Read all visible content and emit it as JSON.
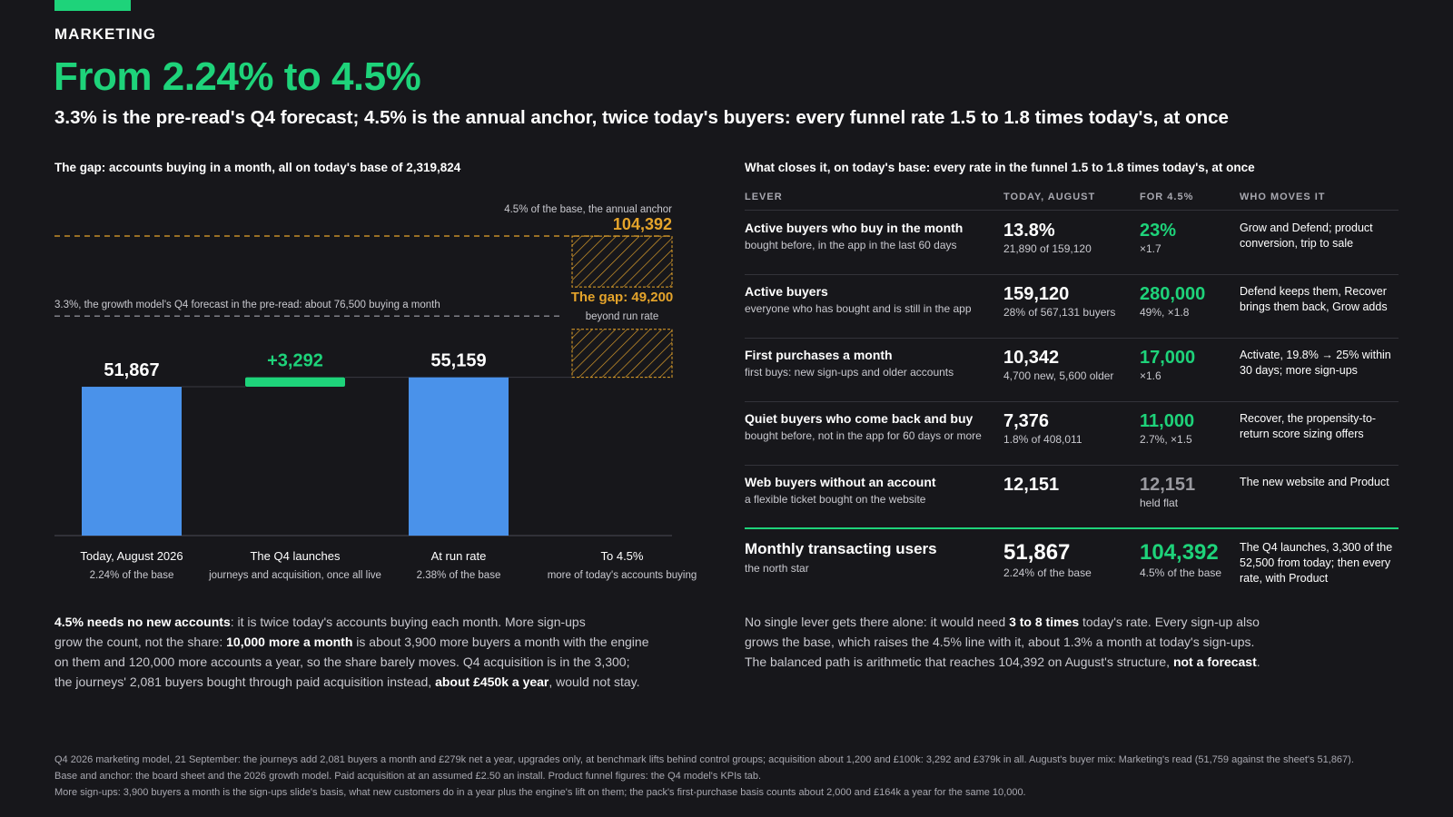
{
  "header": {
    "eyebrow": "MARKETING",
    "headline": "From 2.24% to 4.5%",
    "subhead": "3.3% is the pre-read's Q4 forecast; 4.5% is the annual anchor, twice today's buyers: every funnel rate 1.5 to 1.8 times today's, at once"
  },
  "colors": {
    "accent": "#1ed37a",
    "bar": "#4a92ea",
    "gap": "#e5a42b",
    "muted": "#a8a8b0"
  },
  "left_panel": {
    "title": "The gap: accounts buying in a month, all on today's base of 2,319,824"
  },
  "chart_data": {
    "type": "bar",
    "title": "The gap: accounts buying in a month, all on today's base of 2,319,824",
    "categories": [
      "Today, August 2026",
      "The Q4 launches",
      "At run rate",
      "To 4.5%"
    ],
    "category_sublabels": [
      "2.24% of the base",
      "journeys and acquisition, once all live",
      "2.38% of the base",
      "more of today's accounts buying"
    ],
    "series": [
      {
        "kind": "total",
        "values": [
          51867,
          null,
          55159,
          null
        ]
      },
      {
        "kind": "increment",
        "values": [
          null,
          3292,
          null,
          null
        ]
      },
      {
        "kind": "gap",
        "values": [
          null,
          null,
          null,
          49200
        ]
      }
    ],
    "value_labels": [
      "51,867",
      "+3,292",
      "55,159",
      ""
    ],
    "ylim": [
      0,
      104392
    ],
    "reference_lines": [
      {
        "value": 104392,
        "label": "4.5% of the base, the annual anchor",
        "value_label": "104,392"
      },
      {
        "value": 76500,
        "label": "3.3%, the growth model's Q4 forecast in the pre-read: about 76,500 buying a month"
      }
    ],
    "gap_annotation": {
      "label": "The gap: 49,200",
      "sublabel": "beyond run rate"
    }
  },
  "left_notes": {
    "p1_bold": "4.5% needs no new accounts",
    "p1_a": ": it is twice today's accounts buying each month. More sign-ups",
    "p1_b": "grow the count, not the share: ",
    "p1_bold2": "10,000 more a month",
    "p1_c": " is about 3,900 more buyers a month with the engine",
    "p1_d": "on them and 120,000 more accounts a year, so the share barely moves. Q4 acquisition is in the 3,300;",
    "p1_e": "the journeys' 2,081 buyers bought through paid acquisition instead, ",
    "p1_bold3": "about £450k a year",
    "p1_f": ", would not stay."
  },
  "right_panel": {
    "title": "What closes it, on today's base: every rate in the funnel 1.5 to 1.8 times today's, at once",
    "headers": [
      "LEVER",
      "TODAY, AUGUST",
      "FOR 4.5%",
      "WHO MOVES IT"
    ],
    "rows": [
      {
        "name": "Active buyers who buy in the month",
        "desc": "bought before, in the app in the last 60 days",
        "today": "13.8%",
        "today_sub": "21,890 of 159,120",
        "target": "23%",
        "target_sub": "×1.7",
        "who": "Grow and Defend; product conversion, trip to sale"
      },
      {
        "name": "Active buyers",
        "desc": "everyone who has bought and is still in the app",
        "today": "159,120",
        "today_sub": "28% of 567,131 buyers",
        "target": "280,000",
        "target_sub": "49%, ×1.8",
        "who": "Defend keeps them, Recover brings them back, Grow adds"
      },
      {
        "name": "First purchases a month",
        "desc": "first buys: new sign-ups and older accounts",
        "today": "10,342",
        "today_sub": "4,700 new, 5,600 older",
        "target": "17,000",
        "target_sub": "×1.6",
        "who": "Activate, 19.8% → 25% within 30 days; more sign-ups"
      },
      {
        "name": "Quiet buyers who come back and buy",
        "desc": "bought before, not in the app for 60 days or more",
        "today": "7,376",
        "today_sub": "1.8% of 408,011",
        "target": "11,000",
        "target_sub": "2.7%, ×1.5",
        "who": "Recover, the propensity-to-return score sizing offers"
      },
      {
        "name": "Web buyers without an account",
        "desc": "a flexible ticket bought on the website",
        "today": "12,151",
        "today_sub": "",
        "target": "12,151",
        "target_sub": "held flat",
        "who": "The new website and Product"
      }
    ],
    "total_row": {
      "name": "Monthly transacting users",
      "desc": "the north star",
      "today": "51,867",
      "today_sub": "2.24% of the base",
      "target": "104,392",
      "target_sub": "4.5% of the base",
      "who": "The Q4 launches, 3,300 of the 52,500 from today; then every rate, with Product"
    }
  },
  "right_notes": {
    "a": "No single lever gets there alone: it would need ",
    "bold1": "3 to 8 times",
    "b": " today's rate. Every sign-up also",
    "c": "grows the base, which raises the 4.5% line with it, about 1.3% a month at today's sign-ups.",
    "d": "The balanced path is arithmetic that reaches 104,392 on August's structure, ",
    "bold2": "not a forecast",
    "e": "."
  },
  "footnotes": [
    "Q4 2026 marketing model, 21 September: the journeys add 2,081 buyers a month and £279k net a year, upgrades only, at benchmark lifts behind control groups; acquisition about 1,200 and £100k: 3,292 and £379k in all. August's buyer mix: Marketing's read (51,759 against the sheet's 51,867).",
    "Base and anchor: the board sheet and the 2026 growth model. Paid acquisition at an assumed £2.50 an install. Product funnel figures: the Q4 model's KPIs tab.",
    "More sign-ups: 3,900 buyers a month is the sign-ups slide's basis, what new customers do in a year plus the engine's lift on them; the pack's first-purchase basis counts about 2,000 and £164k a year for the same 10,000."
  ]
}
